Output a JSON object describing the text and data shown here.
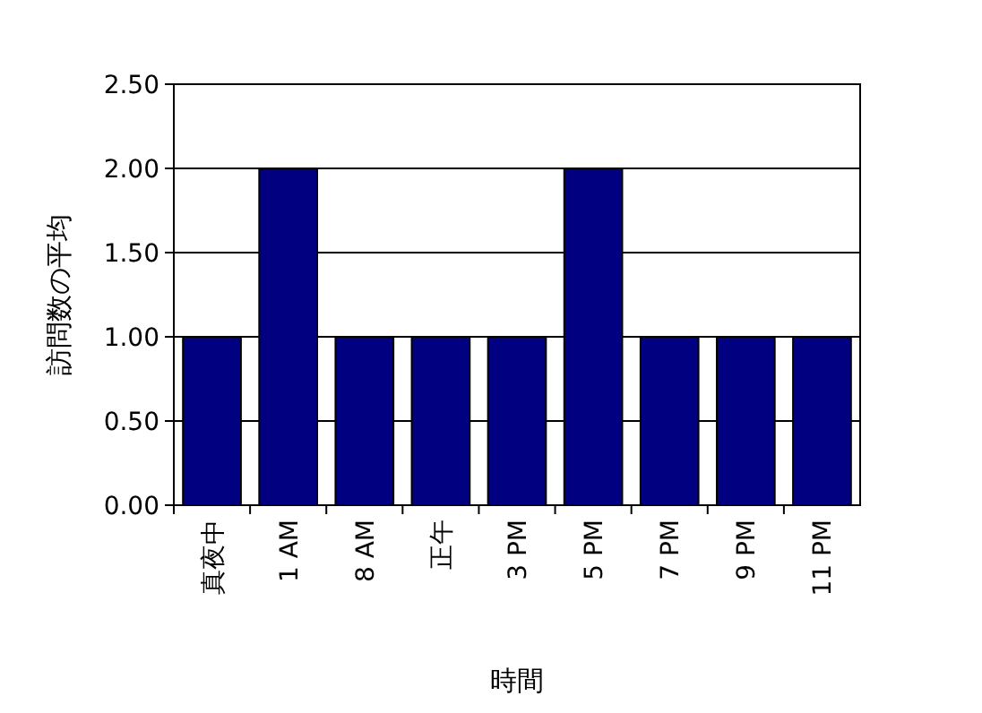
{
  "chart_data": {
    "type": "bar",
    "xlabel": "時間",
    "ylabel": "訪問数の平均",
    "categories": [
      "真夜中",
      "1 AM",
      "8 AM",
      "正午",
      "3 PM",
      "5 PM",
      "7 PM",
      "9 PM",
      "11 PM"
    ],
    "series": [
      {
        "color": "#000080",
        "values": [
          1,
          2,
          1,
          1,
          1,
          2,
          1,
          1,
          1
        ]
      }
    ],
    "ylim": [
      0,
      2.5
    ],
    "yticks": [
      {
        "value": 0,
        "label": "0.00"
      },
      {
        "value": 0.5,
        "label": "0.50"
      },
      {
        "value": 1,
        "label": "1.00"
      },
      {
        "value": 1.5,
        "label": "1.50"
      },
      {
        "value": 2,
        "label": "2.00"
      },
      {
        "value": 2.5,
        "label": "2.50"
      }
    ],
    "grid": "y"
  }
}
